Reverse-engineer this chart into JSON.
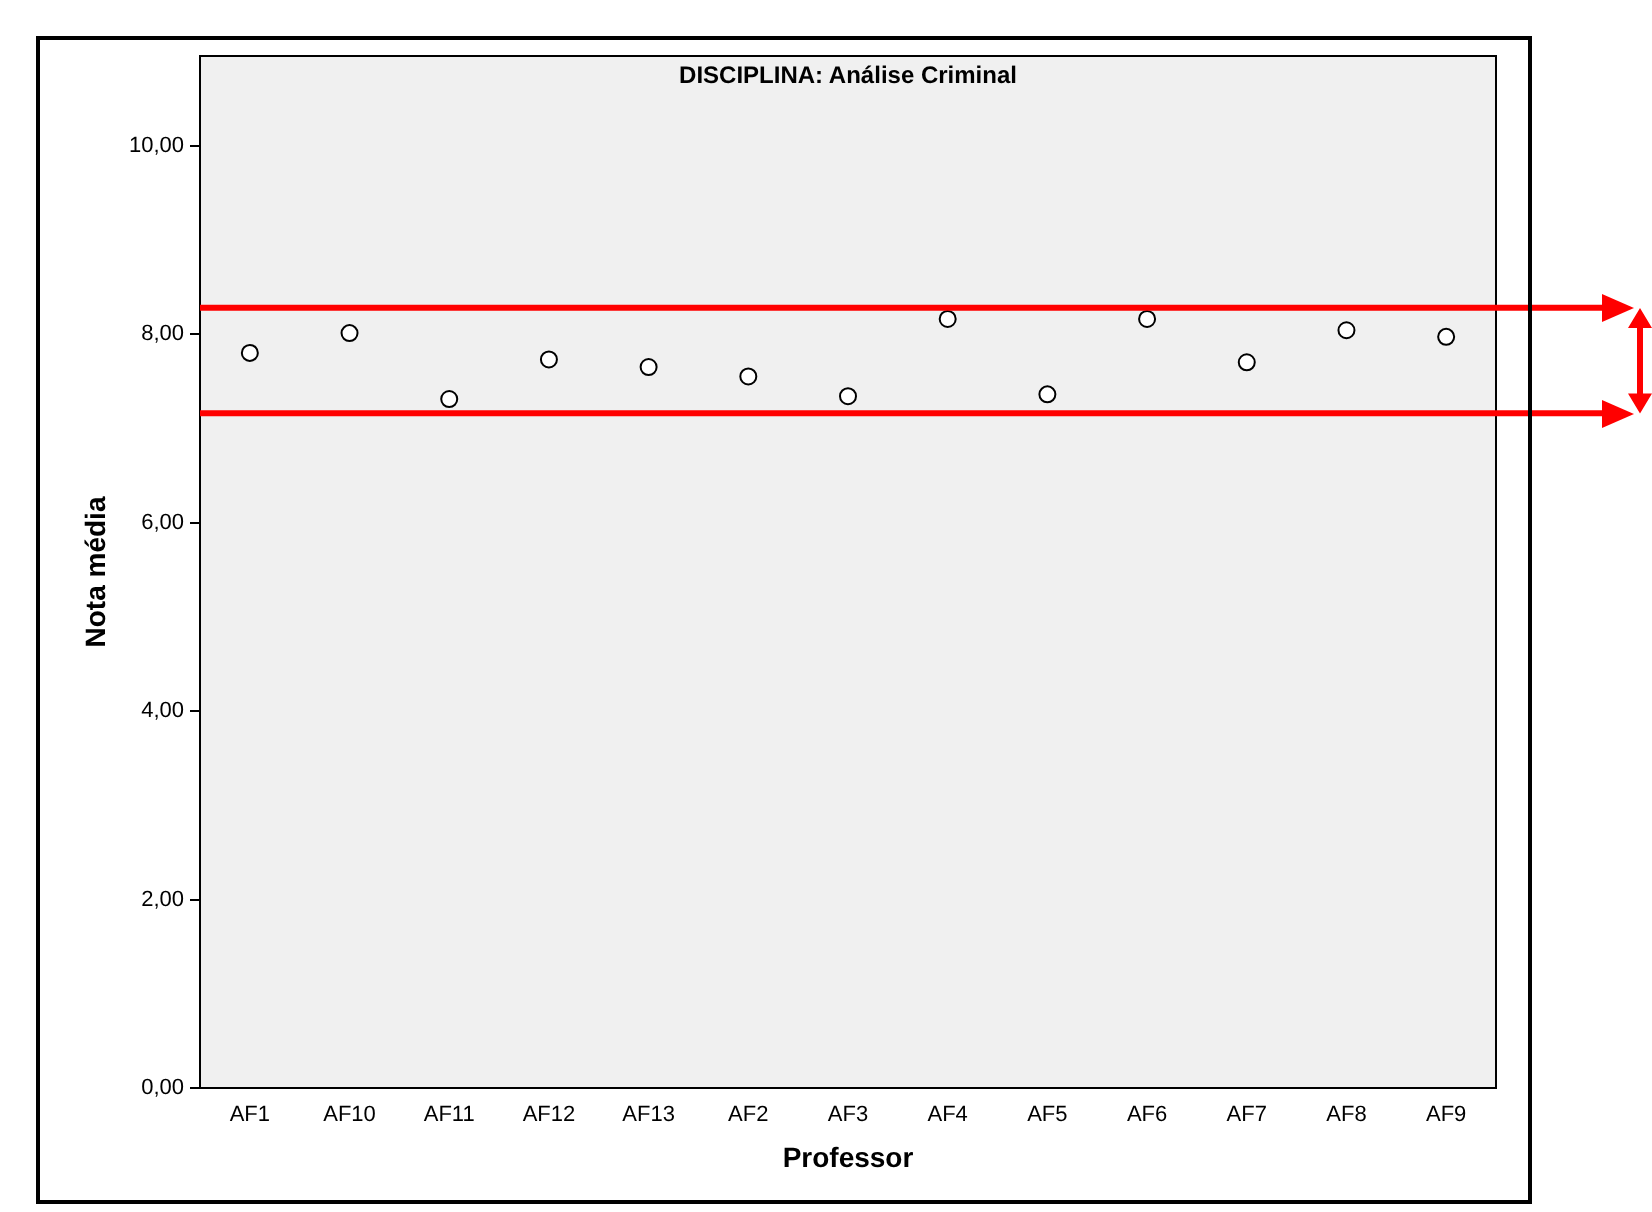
{
  "chart_data": {
    "type": "scatter",
    "title": "DISCIPLINA: Análise Criminal",
    "xlabel": "Professor",
    "ylabel": "Nota média",
    "categories": [
      "AF1",
      "AF10",
      "AF11",
      "AF12",
      "AF13",
      "AF2",
      "AF3",
      "AF4",
      "AF5",
      "AF6",
      "AF7",
      "AF8",
      "AF9"
    ],
    "values": [
      7.8,
      8.01,
      7.31,
      7.73,
      7.65,
      7.55,
      7.34,
      8.16,
      7.36,
      8.16,
      7.7,
      8.04,
      7.97
    ],
    "color": "#000000",
    "marker": "circle",
    "grid": false,
    "legend": false,
    "ylim": [
      0,
      10.95
    ],
    "yticks": [
      {
        "value": 0,
        "label": "0,00"
      },
      {
        "value": 2,
        "label": "2,00"
      },
      {
        "value": 4,
        "label": "4,00"
      },
      {
        "value": 6,
        "label": "6,00"
      },
      {
        "value": 8,
        "label": "8,00"
      },
      {
        "value": 10,
        "label": "10,00"
      }
    ],
    "ref_lines": [
      {
        "axis": "y",
        "value": 8.28,
        "color": "#ff0000"
      },
      {
        "axis": "y",
        "value": 7.16,
        "color": "#ff0000"
      }
    ]
  }
}
